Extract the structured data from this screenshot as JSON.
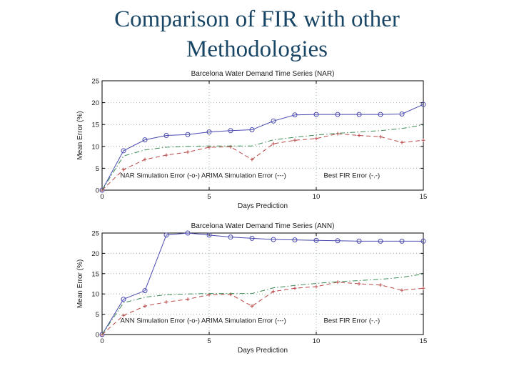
{
  "slide": {
    "title_line1": "Comparison of FIR with other",
    "title_line2": "Methodologies",
    "title_color": "#1a4666",
    "background": "#ffffff"
  },
  "colors": {
    "axis": "#000000",
    "grid": "#9db49d",
    "text": "#1a1a1a",
    "nar_ann_series": "#4a4ab0",
    "arima_series": "#b84848",
    "fir_series": "#3e8b55"
  },
  "chart_data": [
    {
      "type": "line",
      "title": "Barcelona Water Demand Time Series (NAR)",
      "xlabel": "Days Prediction",
      "ylabel": "Mean Error (%)",
      "xlim": [
        0,
        15
      ],
      "ylim": [
        0,
        25
      ],
      "xticks": [
        0,
        5,
        10,
        15
      ],
      "yticks": [
        0,
        5,
        10,
        15,
        20,
        25
      ],
      "grid": "dotted",
      "x": [
        0,
        1,
        2,
        3,
        4,
        5,
        6,
        7,
        8,
        9,
        10,
        11,
        12,
        13,
        14,
        15
      ],
      "series": [
        {
          "name": "NAR Simulation Error",
          "style": "solid",
          "marker": "circle",
          "color": "#4a4ab0",
          "values": [
            0,
            9.0,
            11.5,
            12.5,
            12.7,
            13.3,
            13.6,
            13.8,
            15.8,
            17.2,
            17.3,
            17.3,
            17.3,
            17.3,
            17.4,
            19.6
          ]
        },
        {
          "name": "ARIMA Simulation Error",
          "style": "dashed",
          "marker": "plus",
          "color": "#b84848",
          "values": [
            0,
            4.7,
            7.0,
            8.0,
            8.7,
            9.8,
            9.9,
            7.0,
            10.6,
            11.4,
            11.8,
            12.9,
            12.5,
            12.2,
            10.9,
            11.4
          ]
        },
        {
          "name": "Best FIR Error",
          "style": "dashdot",
          "marker": "none",
          "color": "#3e8b55",
          "values": [
            0,
            7.8,
            9.2,
            9.8,
            10.0,
            10.1,
            10.1,
            10.1,
            11.5,
            12.1,
            12.6,
            13.0,
            13.3,
            13.6,
            14.1,
            14.9
          ]
        }
      ],
      "legend_left": "NAR Simulation Error (-o-) ARIMA Simulation Error (---)",
      "legend_right": "Best FIR Error (-.-)",
      "legend_left_x": 0.85,
      "legend_right_x": 10.35,
      "legend_y": 2.9
    },
    {
      "type": "line",
      "title": "Barcelona Water Demand Time Series (ANN)",
      "xlabel": "Days Prediction",
      "ylabel": "Mean Error (%)",
      "xlim": [
        0,
        15
      ],
      "ylim": [
        0,
        25
      ],
      "xticks": [
        0,
        5,
        10,
        15
      ],
      "yticks": [
        0,
        5,
        10,
        15,
        20,
        25
      ],
      "grid": "dotted",
      "x": [
        0,
        1,
        2,
        3,
        4,
        5,
        6,
        7,
        8,
        9,
        10,
        11,
        12,
        13,
        14,
        15
      ],
      "series": [
        {
          "name": "ANN Simulation Error",
          "style": "solid",
          "marker": "circle",
          "color": "#4a4ab0",
          "values": [
            0,
            8.7,
            10.8,
            24.5,
            25.0,
            24.5,
            24.0,
            23.7,
            23.4,
            23.3,
            23.2,
            23.1,
            23.0,
            23.0,
            23.0,
            23.0
          ]
        },
        {
          "name": "ARIMA Simulation Error",
          "style": "dashed",
          "marker": "plus",
          "color": "#b84848",
          "values": [
            0,
            4.7,
            7.0,
            8.0,
            8.7,
            9.8,
            9.9,
            7.0,
            10.6,
            11.4,
            11.8,
            12.9,
            12.5,
            12.2,
            10.9,
            11.4
          ]
        },
        {
          "name": "Best FIR Error",
          "style": "dashdot",
          "marker": "none",
          "color": "#3e8b55",
          "values": [
            0,
            7.8,
            9.2,
            9.8,
            10.0,
            10.1,
            10.1,
            10.1,
            11.5,
            12.1,
            12.6,
            13.0,
            13.3,
            13.6,
            14.1,
            14.9
          ]
        }
      ],
      "legend_left": "ANN Simulation Error (-o-) ARIMA Simulation Error (---)",
      "legend_right": "Best FIR Error (-.-)",
      "legend_left_x": 0.85,
      "legend_right_x": 10.35,
      "legend_y": 2.9
    }
  ]
}
